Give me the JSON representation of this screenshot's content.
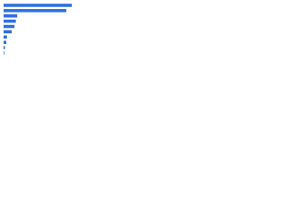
{
  "chart_data": {
    "type": "bar",
    "orientation": "horizontal",
    "categories": [
      null,
      null,
      null,
      null,
      null,
      null,
      null,
      null,
      null,
      null
    ],
    "values": [
      100,
      92,
      20,
      18,
      16,
      12,
      5,
      4,
      2,
      1
    ],
    "color": "#2f6fde"
  }
}
